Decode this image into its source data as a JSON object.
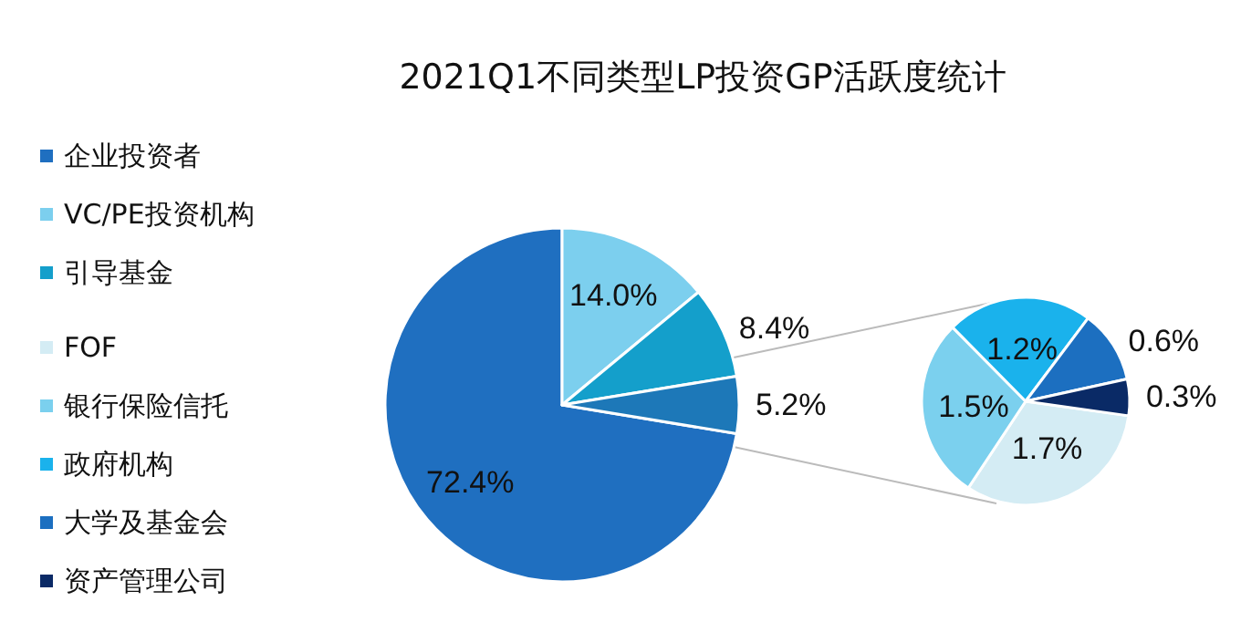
{
  "chart_data": [
    {
      "type": "pie",
      "title": "2021Q1不同类型LP投资GP活跃度统计",
      "categories": [
        "企业投资者",
        "VC/PE投资机构",
        "引导基金",
        null
      ],
      "values": [
        72.4,
        14.0,
        8.4,
        5.2
      ],
      "colors": [
        "#1f6fc0",
        "#7ccfee",
        "#149fcb",
        "#1d78b8"
      ],
      "value_labels": [
        "72.4%",
        "14.0%",
        "8.4%",
        "5.2%"
      ],
      "legend": "left"
    },
    {
      "type": "pie",
      "categories": [
        "FOF",
        "银行保险信托",
        "政府机构",
        "大学及基金会",
        "资产管理公司"
      ],
      "values": [
        1.7,
        1.5,
        1.2,
        0.6,
        0.3
      ],
      "colors": [
        "#d4ecf4",
        "#7bd0ee",
        "#1ab2ec",
        "#1c6fc0",
        "#0a2a66"
      ],
      "value_labels": [
        "1.7%",
        "1.5%",
        "1.2%",
        "0.6%",
        "0.3%"
      ],
      "legend": "left"
    }
  ]
}
